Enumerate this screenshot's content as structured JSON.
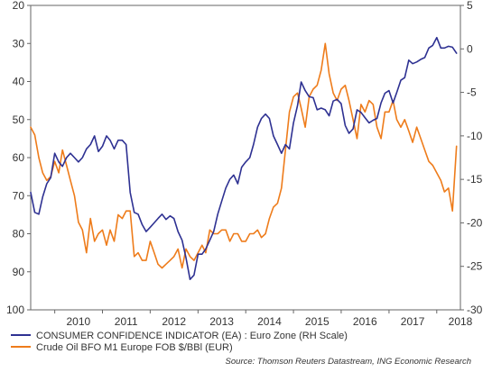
{
  "chart_data": {
    "type": "line",
    "x_axis": {
      "type": "date",
      "range": [
        "2009-07-01",
        "2018-07-01"
      ],
      "tick_labels": [
        "2010",
        "2011",
        "2012",
        "2013",
        "2014",
        "2015",
        "2016",
        "2017",
        "2018"
      ]
    },
    "y_left": {
      "range": [
        20,
        100
      ],
      "inverted": true,
      "tick_labels": [
        "20",
        "30",
        "40",
        "50",
        "60",
        "70",
        "80",
        "90",
        "100"
      ]
    },
    "y_right": {
      "range": [
        -30,
        5
      ],
      "tick_labels": [
        "5",
        "0",
        "-5",
        "-10",
        "-15",
        "-20",
        "-25",
        "-30"
      ]
    },
    "grid": false,
    "legend_position": "bottom-left",
    "series": [
      {
        "name": "CONSUMER CONFIDENCE INDICATOR (EA) : Euro Zone (RH Scale)",
        "color": "#2e3192",
        "axis": "right",
        "x": [
          "2009-07-01",
          "2009-08-01",
          "2009-09-01",
          "2009-10-01",
          "2009-11-01",
          "2009-12-01",
          "2010-01-01",
          "2010-02-01",
          "2010-03-01",
          "2010-04-01",
          "2010-05-01",
          "2010-06-01",
          "2010-07-01",
          "2010-08-01",
          "2010-09-01",
          "2010-10-01",
          "2010-11-01",
          "2010-12-01",
          "2011-01-01",
          "2011-02-01",
          "2011-03-01",
          "2011-04-01",
          "2011-05-01",
          "2011-06-01",
          "2011-07-01",
          "2011-08-01",
          "2011-09-01",
          "2011-10-01",
          "2011-11-01",
          "2011-12-01",
          "2012-01-01",
          "2012-02-01",
          "2012-03-01",
          "2012-04-01",
          "2012-05-01",
          "2012-06-01",
          "2012-07-01",
          "2012-08-01",
          "2012-09-01",
          "2012-10-01",
          "2012-11-01",
          "2012-12-01",
          "2013-01-01",
          "2013-02-01",
          "2013-03-01",
          "2013-04-01",
          "2013-05-01",
          "2013-06-01",
          "2013-07-01",
          "2013-08-01",
          "2013-09-01",
          "2013-10-01",
          "2013-11-01",
          "2013-12-01",
          "2014-01-01",
          "2014-02-01",
          "2014-03-01",
          "2014-04-01",
          "2014-05-01",
          "2014-06-01",
          "2014-07-01",
          "2014-08-01",
          "2014-09-01",
          "2014-10-01",
          "2014-11-01",
          "2014-12-01",
          "2015-01-01",
          "2015-02-01",
          "2015-03-01",
          "2015-04-01",
          "2015-05-01",
          "2015-06-01",
          "2015-07-01",
          "2015-08-01",
          "2015-09-01",
          "2015-10-01",
          "2015-11-01",
          "2015-12-01",
          "2016-01-01",
          "2016-02-01",
          "2016-03-01",
          "2016-04-01",
          "2016-05-01",
          "2016-06-01",
          "2016-07-01",
          "2016-08-01",
          "2016-09-01",
          "2016-10-01",
          "2016-11-01",
          "2016-12-01",
          "2017-01-01",
          "2017-02-01",
          "2017-03-01",
          "2017-04-01",
          "2017-05-01",
          "2017-06-01",
          "2017-07-01",
          "2017-08-01",
          "2017-09-01",
          "2017-10-01",
          "2017-11-01",
          "2017-12-01",
          "2018-01-01",
          "2018-02-01",
          "2018-03-01",
          "2018-04-01",
          "2018-05-01",
          "2018-06-01"
        ],
        "y": [
          -16.5,
          -18.8,
          -19.0,
          -17.0,
          -15.5,
          -14.8,
          -12.0,
          -13.0,
          -13.5,
          -12.5,
          -12.0,
          -12.5,
          -13.0,
          -12.5,
          -11.5,
          -11.0,
          -10.0,
          -11.8,
          -11.2,
          -10.0,
          -10.5,
          -11.5,
          -10.5,
          -10.5,
          -11.0,
          -16.5,
          -18.8,
          -19.0,
          -20.2,
          -21.0,
          -20.5,
          -20.0,
          -19.5,
          -19.0,
          -19.6,
          -19.2,
          -19.5,
          -21.0,
          -22.0,
          -24.0,
          -26.5,
          -26.0,
          -23.6,
          -23.6,
          -23.0,
          -22.0,
          -21.0,
          -19.0,
          -17.5,
          -16.0,
          -15.0,
          -14.5,
          -15.5,
          -13.6,
          -13.0,
          -12.5,
          -11.0,
          -9.0,
          -8.0,
          -7.5,
          -8.0,
          -10.0,
          -11.0,
          -12.0,
          -11.0,
          -11.5,
          -8.5,
          -6.5,
          -3.8,
          -4.8,
          -5.5,
          -5.6,
          -7.0,
          -6.8,
          -7.0,
          -7.7,
          -6.0,
          -5.8,
          -6.3,
          -8.8,
          -9.7,
          -9.2,
          -7.0,
          -7.3,
          -7.9,
          -8.5,
          -8.2,
          -8.0,
          -6.2,
          -5.1,
          -4.8,
          -6.2,
          -5.0,
          -3.6,
          -3.3,
          -1.3,
          -1.7,
          -1.5,
          -1.2,
          -1.0,
          0.1,
          0.4,
          1.3,
          0.1,
          0.1,
          0.3,
          0.2,
          -0.5
        ]
      },
      {
        "name": "Crude Oil BFO M1 Europe FOB $/BBl (EUR)",
        "color": "#ee7c1b",
        "axis": "left",
        "x": [
          "2009-07-01",
          "2009-08-01",
          "2009-09-01",
          "2009-10-01",
          "2009-11-01",
          "2009-12-01",
          "2010-01-01",
          "2010-02-01",
          "2010-03-01",
          "2010-04-01",
          "2010-05-01",
          "2010-06-01",
          "2010-07-01",
          "2010-08-01",
          "2010-09-01",
          "2010-10-01",
          "2010-11-01",
          "2010-12-01",
          "2011-01-01",
          "2011-02-01",
          "2011-03-01",
          "2011-04-01",
          "2011-05-01",
          "2011-06-01",
          "2011-07-01",
          "2011-08-01",
          "2011-09-01",
          "2011-10-01",
          "2011-11-01",
          "2011-12-01",
          "2012-01-01",
          "2012-02-01",
          "2012-03-01",
          "2012-04-01",
          "2012-05-01",
          "2012-06-01",
          "2012-07-01",
          "2012-08-01",
          "2012-09-01",
          "2012-10-01",
          "2012-11-01",
          "2012-12-01",
          "2013-01-01",
          "2013-02-01",
          "2013-03-01",
          "2013-04-01",
          "2013-05-01",
          "2013-06-01",
          "2013-07-01",
          "2013-08-01",
          "2013-09-01",
          "2013-10-01",
          "2013-11-01",
          "2013-12-01",
          "2014-01-01",
          "2014-02-01",
          "2014-03-01",
          "2014-04-01",
          "2014-05-01",
          "2014-06-01",
          "2014-07-01",
          "2014-08-01",
          "2014-09-01",
          "2014-10-01",
          "2014-11-01",
          "2014-12-01",
          "2015-01-01",
          "2015-02-01",
          "2015-03-01",
          "2015-04-01",
          "2015-05-01",
          "2015-06-01",
          "2015-07-01",
          "2015-08-01",
          "2015-09-01",
          "2015-10-01",
          "2015-11-01",
          "2015-12-01",
          "2016-01-01",
          "2016-02-01",
          "2016-03-01",
          "2016-04-01",
          "2016-05-01",
          "2016-06-01",
          "2016-07-01",
          "2016-08-01",
          "2016-09-01",
          "2016-10-01",
          "2016-11-01",
          "2016-12-01",
          "2017-01-01",
          "2017-02-01",
          "2017-03-01",
          "2017-04-01",
          "2017-05-01",
          "2017-06-01",
          "2017-07-01",
          "2017-08-01",
          "2017-09-01",
          "2017-10-01",
          "2017-11-01",
          "2017-12-01",
          "2018-01-01",
          "2018-02-01",
          "2018-03-01",
          "2018-04-01",
          "2018-05-01",
          "2018-06-01"
        ],
        "y": [
          52,
          54,
          60,
          64,
          66,
          65,
          61,
          64,
          58,
          62,
          66,
          70,
          77,
          79,
          85,
          76,
          82,
          80,
          79,
          83,
          79,
          82,
          75,
          76,
          74,
          74,
          86,
          85,
          87,
          87,
          82,
          85,
          88,
          89,
          88,
          87,
          86,
          84,
          89,
          84,
          86,
          87,
          85,
          83,
          85,
          79,
          80,
          80,
          79,
          79,
          82,
          80,
          80,
          82,
          82,
          80,
          80,
          79,
          81,
          80,
          76,
          73,
          72,
          68,
          58,
          48,
          44,
          43,
          47,
          52,
          44,
          42,
          41,
          37,
          30,
          38,
          43,
          45,
          42,
          41,
          45,
          50,
          55,
          46,
          48,
          45,
          46,
          52,
          55,
          48,
          48,
          45,
          50,
          52,
          50,
          53,
          56,
          52,
          55,
          58,
          61,
          62,
          64,
          66,
          69,
          68,
          74,
          57
        ]
      }
    ],
    "source": "Source: Thomson Reuters Datastream, ING Economic Research"
  }
}
